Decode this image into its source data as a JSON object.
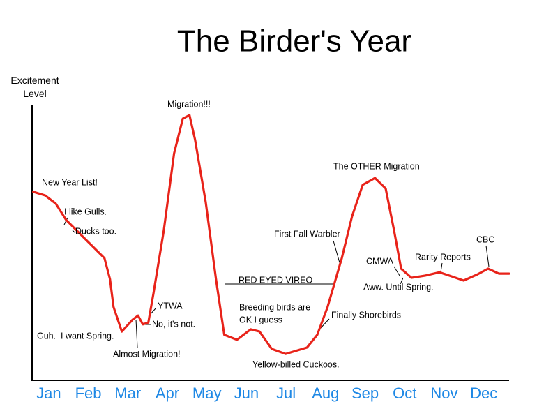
{
  "chart_data": {
    "type": "line",
    "title": "The Birder's Year",
    "y_label": "Excitement Level",
    "xlim": [
      -0.42,
      11.64
    ],
    "xticks": [
      {
        "value": 0,
        "label": "Jan"
      },
      {
        "value": 1,
        "label": "Feb"
      },
      {
        "value": 2,
        "label": "Mar"
      },
      {
        "value": 3,
        "label": "Apr"
      },
      {
        "value": 4,
        "label": "May"
      },
      {
        "value": 5,
        "label": "Jun"
      },
      {
        "value": 6,
        "label": "Jul"
      },
      {
        "value": 7,
        "label": "Aug"
      },
      {
        "value": 8,
        "label": "Sep"
      },
      {
        "value": 9,
        "label": "Oct"
      },
      {
        "value": 10,
        "label": "Nov"
      },
      {
        "value": 11,
        "label": "Dec"
      }
    ],
    "ylim": [
      0,
      100
    ],
    "grid": false,
    "series": [
      {
        "color": "#e8231a",
        "x": [
          -0.39,
          -0.09,
          0.18,
          0.44,
          0.88,
          1.41,
          1.55,
          1.64,
          1.85,
          2.12,
          2.26,
          2.38,
          2.52,
          2.65,
          2.91,
          3.17,
          3.39,
          3.56,
          3.7,
          3.97,
          4.23,
          4.44,
          4.76,
          5.11,
          5.33,
          5.64,
          5.99,
          6.53,
          6.79,
          7.05,
          7.41,
          7.67,
          7.94,
          8.25,
          8.52,
          8.73,
          8.91,
          9.17,
          9.52,
          9.88,
          10.23,
          10.49,
          10.85,
          11.11,
          11.38,
          11.64
        ],
        "values": [
          68.4,
          67.1,
          64.1,
          58.2,
          51.9,
          44.3,
          36.7,
          26.6,
          17.7,
          22.0,
          23.5,
          20.3,
          21.0,
          31.6,
          54.4,
          82.3,
          94.9,
          96.2,
          87.3,
          64.6,
          36.7,
          16.5,
          14.7,
          18.5,
          17.7,
          11.4,
          9.6,
          11.9,
          16.5,
          26.6,
          44.3,
          59.5,
          70.9,
          73.4,
          69.6,
          54.4,
          40.5,
          37.2,
          38.0,
          39.2,
          37.5,
          36.2,
          38.5,
          40.5,
          38.7,
          38.7
        ]
      }
    ],
    "annotations": [
      "New Year List!",
      "I like Gulls.",
      "Ducks too.",
      "Guh.  I want Spring.",
      "Almost Migration!",
      "YTWA",
      "No, it's not.",
      "Migration!!!",
      "RED EYED VIREO",
      "Breeding birds are",
      "OK I guess",
      "Yellow-billed Cuckoos.",
      "First Fall Warbler",
      "Finally Shorebirds",
      "The OTHER Migration",
      "CMWA",
      "Aww. Until Spring.",
      "Rarity Reports",
      "CBC"
    ]
  }
}
